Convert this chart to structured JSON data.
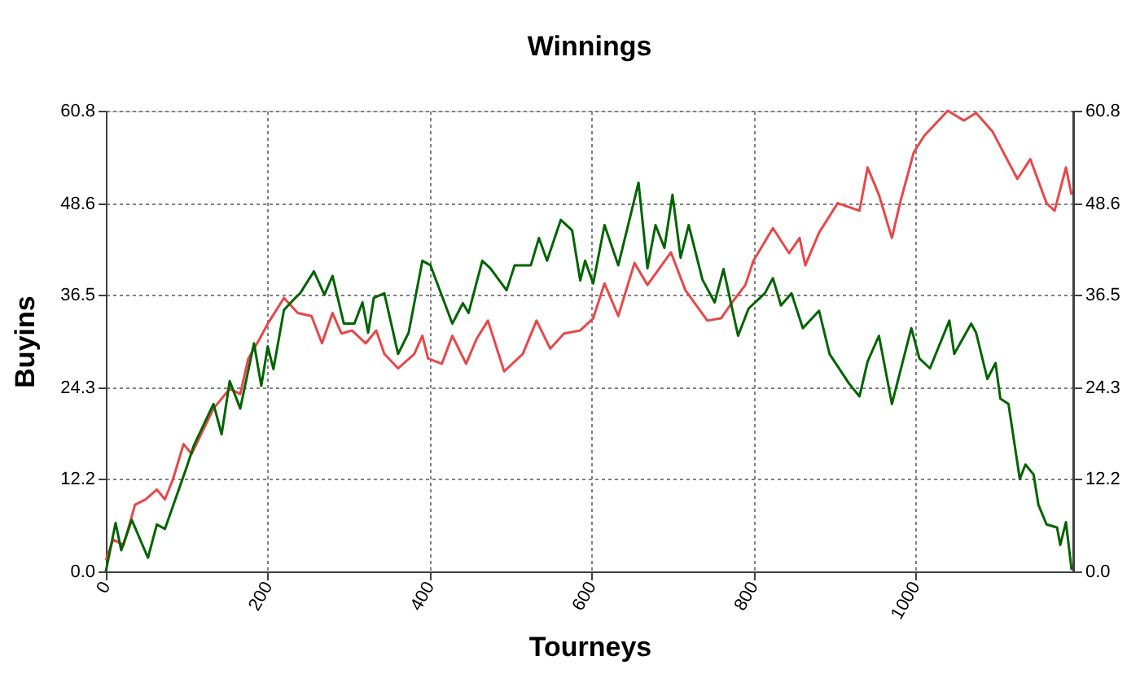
{
  "chart_data": {
    "type": "line",
    "title": "Winnings",
    "xlabel": "Tourneys",
    "ylabel": "Buyins",
    "xlim": [
      0,
      1195
    ],
    "xticks": [
      0,
      200,
      400,
      600,
      800,
      1000
    ],
    "ylim": [
      0,
      60.8
    ],
    "yticks": [
      {
        "value": 0,
        "label": "0.0"
      },
      12.2,
      24.3,
      36.5,
      48.6,
      60.8
    ],
    "y2lim": [
      0,
      60.8
    ],
    "y2ticks": [
      {
        "value": 0,
        "label": "0.0"
      },
      12.2,
      24.3,
      36.5,
      48.6,
      60.8
    ],
    "grid": true,
    "legend": false,
    "marker": "none",
    "line_style": "solid",
    "series": [
      {
        "color": "#e8474a",
        "x": [
          0,
          9,
          22,
          36,
          49,
          63,
          73,
          83,
          96,
          106,
          133,
          153,
          166,
          176,
          190,
          200,
          220,
          237,
          254,
          267,
          280,
          291,
          304,
          321,
          334,
          344,
          361,
          381,
          391,
          398,
          415,
          428,
          445,
          458,
          472,
          492,
          515,
          532,
          549,
          566,
          586,
          602,
          616,
          633,
          653,
          669,
          698,
          716,
          743,
          760,
          773,
          790,
          800,
          824,
          844,
          857,
          864,
          881,
          904,
          931,
          941,
          955,
          971,
          981,
          998,
          1011,
          1040,
          1060,
          1075,
          1095,
          1126,
          1142,
          1162,
          1172,
          1186,
          1193
        ],
        "values": [
          1.5,
          4.2,
          3.5,
          8.8,
          9.5,
          10.8,
          9.5,
          12.2,
          16.8,
          15.5,
          21.5,
          24.1,
          23.4,
          28.1,
          30.7,
          32.7,
          36.1,
          34.1,
          33.7,
          30.1,
          34.1,
          31.4,
          31.8,
          30.1,
          31.8,
          28.7,
          26.8,
          28.7,
          31.1,
          28.1,
          27.4,
          31.1,
          27.4,
          30.7,
          33.1,
          26.4,
          28.7,
          33.1,
          29.4,
          31.4,
          31.8,
          33.4,
          38.0,
          33.7,
          40.7,
          37.8,
          42.1,
          37.1,
          33.1,
          33.4,
          35.4,
          37.8,
          41.0,
          45.3,
          42.0,
          44.0,
          40.4,
          44.7,
          48.6,
          47.6,
          53.3,
          49.7,
          44.0,
          48.6,
          55.3,
          57.5,
          60.8,
          59.5,
          60.5,
          58.1,
          51.8,
          54.4,
          48.6,
          47.6,
          53.3,
          49.7
        ]
      },
      {
        "color": "#006400",
        "x": [
          0,
          12,
          19,
          32,
          52,
          63,
          73,
          99,
          109,
          133,
          143,
          153,
          166,
          183,
          192,
          200,
          207,
          220,
          234,
          240,
          257,
          270,
          280,
          294,
          307,
          317,
          324,
          331,
          344,
          361,
          374,
          391,
          401,
          428,
          441,
          448,
          465,
          475,
          495,
          505,
          525,
          535,
          545,
          562,
          576,
          586,
          592,
          602,
          616,
          633,
          658,
          669,
          679,
          690,
          700,
          710,
          720,
          737,
          752,
          763,
          781,
          794,
          814,
          824,
          834,
          847,
          861,
          881,
          894,
          918,
          931,
          941,
          955,
          971,
          995,
          1005,
          1018,
          1042,
          1048,
          1069,
          1075,
          1089,
          1099,
          1105,
          1115,
          1129,
          1136,
          1146,
          1152,
          1162,
          1175,
          1179,
          1186,
          1193
        ],
        "values": [
          0,
          6.4,
          2.8,
          6.8,
          1.8,
          6.2,
          5.6,
          13.5,
          16.7,
          22.1,
          18.1,
          25.1,
          21.5,
          30.1,
          24.5,
          29.7,
          26.7,
          34.5,
          36.1,
          36.7,
          39.6,
          36.5,
          39.0,
          32.7,
          32.7,
          35.5,
          31.5,
          36.1,
          36.7,
          28.7,
          31.5,
          41.0,
          40.4,
          32.7,
          35.4,
          34.1,
          41.0,
          40.0,
          37.1,
          40.4,
          40.4,
          44.0,
          41.0,
          46.4,
          45.0,
          38.4,
          41.0,
          38.0,
          45.7,
          40.4,
          51.3,
          40.0,
          45.7,
          42.7,
          49.7,
          41.4,
          45.7,
          38.5,
          35.5,
          39.9,
          31.1,
          34.7,
          36.7,
          38.7,
          35.1,
          36.7,
          32.1,
          34.4,
          28.7,
          24.8,
          23.1,
          27.7,
          31.1,
          22.1,
          32.1,
          28.1,
          26.8,
          33.1,
          28.7,
          32.7,
          31.5,
          25.4,
          27.5,
          22.8,
          22.1,
          12.2,
          14.1,
          12.8,
          8.8,
          6.2,
          5.8,
          3.5,
          6.5,
          0.2
        ]
      }
    ]
  }
}
